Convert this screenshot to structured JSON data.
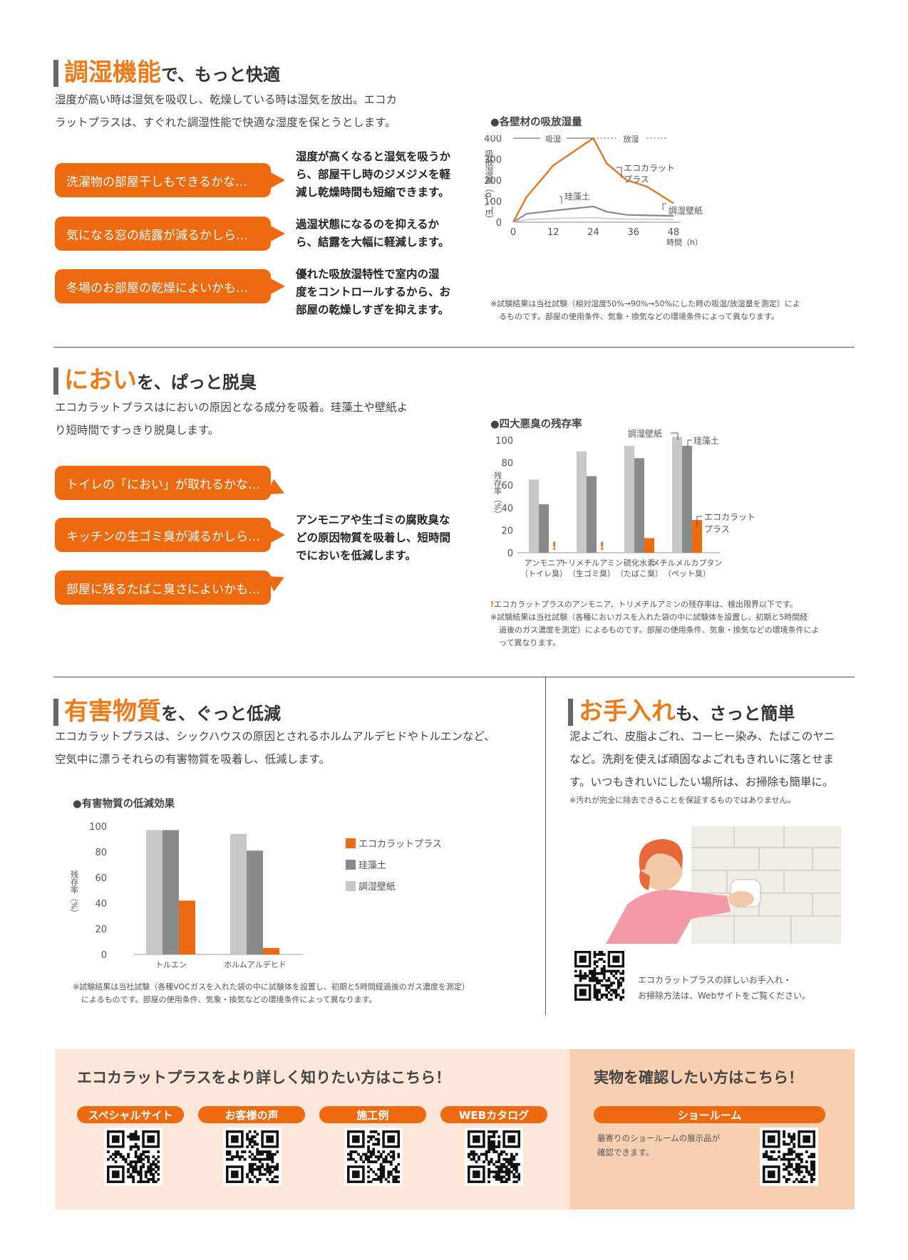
{
  "colors": {
    "accent": "#ee6a10",
    "eco": "#ee6a10",
    "keisodo": "#8a8a8a",
    "wallpaper": "#c8c8c8",
    "panel_left": "#fce7d8",
    "panel_right": "#f8cfb0"
  },
  "section1": {
    "title_big": "調湿機能",
    "title_small": "で、もっと快適",
    "lead_lines": [
      "湿度が高い時は湿気を吸収し、乾燥している時は湿気を放出。エコカ",
      "ラットプラスは、すぐれた調湿性能で快適な湿度を保とうとします。"
    ],
    "bubbles": [
      "洗濯物の部屋干しもできるかな…",
      "気になる窓の結露が減るかしら…",
      "冬場のお部屋の乾燥によいかも…"
    ],
    "answers": [
      [
        "湿度が高くなると湿気を吸うか",
        "ら、部屋干し時のジメジメを軽",
        "減し乾燥時間も短縮できます。"
      ],
      [
        "過湿状態になるのを抑えるか",
        "ら、結露を大幅に軽減します。"
      ],
      [
        "優れた吸放湿特性で室内の湿",
        "度をコントロールするから、お",
        "部屋の乾燥しすぎを抑えます。"
      ]
    ],
    "chart_title": "●各壁材の吸放湿量",
    "notes": [
      "※試験結果は当社試験（相対湿度50%→90%→50%にした時の吸湿/放湿量を測定）によ",
      "るものです。部屋の使用条件、気象・換気などの環境条件によって異なります。"
    ]
  },
  "section2": {
    "title_big": "におい",
    "title_small": "を、ぱっと脱臭",
    "lead_lines": [
      "エコカラットプラスはにおいの原因となる成分を吸着。珪藻土や壁紙よ",
      "り短時間ですっきり脱臭します。"
    ],
    "bubbles": [
      "トイレの「におい」が取れるかな…",
      "キッチンの生ゴミ臭が減るかしら…",
      "部屋に残るたばこ臭さによいかも…"
    ],
    "answer": [
      "アンモニアや生ゴミの腐敗臭な",
      "どの原因物質を吸着し、短時間",
      "でにおいを低減します。"
    ],
    "chart_title": "●四大悪臭の残存率",
    "notes": [
      {
        "mark": "!",
        "text": "エコカラットプラスのアンモニア、トリメチルアミンの残存率は、検出限界以下です。"
      },
      {
        "mark": "",
        "text": "※試験結果は当社試験（各種においガスを入れた袋の中に試験体を設置し、初期と5時間経"
      },
      {
        "mark": "",
        "text": "過後のガス濃度を測定）によるものです。部屋の使用条件、気象・換気などの環境条件によ"
      },
      {
        "mark": "",
        "text": "って異なります。"
      }
    ]
  },
  "section3": {
    "title_big": "有害物質",
    "title_small": "を、ぐっと低減",
    "lead_lines": [
      "エコカラットプラスは、シックハウスの原因とされるホルムアルデヒドやトルエンなど、",
      "空気中に漂うそれらの有害物質を吸着し、低減します。"
    ],
    "chart_title": "●有害物質の低減効果",
    "notes": [
      "※試験結果は当社試験（各種VOCガスを入れた袋の中に試験体を設置し、初期と5時間経過後のガス濃度を測定）",
      "によるものです。部屋の使用条件、気象・換気などの環境条件によって異なります。"
    ]
  },
  "section4": {
    "title_big": "お手入れ",
    "title_small": "も、さっと簡単",
    "lead_lines": [
      "泥よごれ、皮脂よごれ、コーヒー染み、たばこのヤニ",
      "など。洗剤を使えば頑固なよごれもきれいに落とせま",
      "す。いつもきれいにしたい場所は、お掃除も簡単に。"
    ],
    "note": "※汚れが完全に除去できることを保証するものではありません。",
    "qr_text": [
      "エコカラットプラスの詳しいお手入れ・",
      "お掃除方法は、Webサイトをご覧ください。"
    ]
  },
  "footer": {
    "left_title": "エコカラットプラスをより詳しく知りたい方はこちら！",
    "links": [
      "スペシャルサイト",
      "お客様の声",
      "施工例",
      "WEBカタログ"
    ],
    "right_title": "実物を確認したい方はこちら！",
    "showroom": "ショールーム",
    "showroom_text": [
      "最寄りのショールームの展示品が",
      "確認できます。"
    ]
  },
  "chart_data": [
    {
      "type": "line",
      "title": "●各壁材の吸放湿量",
      "ylabel": "吸放湿量（g／㎡）",
      "xlabel": "時間（h）",
      "x_ticks": [
        "0",
        "12",
        "24",
        "36",
        "48"
      ],
      "y_ticks": [
        "0",
        "100",
        "200",
        "300",
        "400"
      ],
      "xlim": [
        0,
        48
      ],
      "ylim": [
        0,
        400
      ],
      "phase_labels": [
        "吸湿",
        "放湿"
      ],
      "series": [
        {
          "name": "エコカラットプラス",
          "x": [
            0,
            4,
            12,
            24,
            28,
            34,
            40,
            48
          ],
          "y": [
            0,
            120,
            270,
            400,
            280,
            200,
            170,
            90
          ]
        },
        {
          "name": "珪藻土",
          "x": [
            0,
            4,
            12,
            24,
            28,
            34,
            48
          ],
          "y": [
            0,
            40,
            55,
            75,
            50,
            35,
            30
          ]
        },
        {
          "name": "調湿壁紙",
          "x": [
            0,
            4,
            12,
            24,
            28,
            34,
            48
          ],
          "y": [
            0,
            12,
            18,
            22,
            18,
            15,
            13
          ]
        }
      ]
    },
    {
      "type": "bar",
      "title": "●四大悪臭の残存率",
      "ylabel": "残存率（%）",
      "ylim": [
        0,
        100
      ],
      "y_ticks": [
        "0",
        "20",
        "40",
        "60",
        "80",
        "100"
      ],
      "categories": [
        [
          "アンモニア",
          "（トイレ臭）"
        ],
        [
          "トリメチルアミン",
          "（生ゴミ臭）"
        ],
        [
          "硫化水素",
          "（たばこ臭）"
        ],
        [
          "メチルメルカプタン",
          "（ペット臭）"
        ]
      ],
      "series": [
        {
          "name": "調湿壁紙",
          "values": [
            65,
            90,
            95,
            103
          ]
        },
        {
          "name": "珪藻土",
          "values": [
            43,
            68,
            84,
            95
          ]
        },
        {
          "name": "エコカラットプラス",
          "values": [
            0,
            0,
            13,
            29
          ]
        }
      ],
      "below_detection": [
        true,
        true,
        false,
        false
      ],
      "marker": "!"
    },
    {
      "type": "bar",
      "title": "●有害物質の低減効果",
      "ylabel": "残存率（%）",
      "ylim": [
        0,
        100
      ],
      "y_ticks": [
        "0",
        "20",
        "40",
        "60",
        "80",
        "100"
      ],
      "categories": [
        "トルエン",
        "ホルムアルデヒド"
      ],
      "series": [
        {
          "name": "調湿壁紙",
          "values": [
            97,
            94
          ]
        },
        {
          "name": "珪藻土",
          "values": [
            97,
            81
          ]
        },
        {
          "name": "エコカラットプラス",
          "values": [
            42,
            5
          ]
        }
      ],
      "legend": [
        "エコカラットプラス",
        "珪藻土",
        "調湿壁紙"
      ],
      "legend_position": "right"
    }
  ]
}
